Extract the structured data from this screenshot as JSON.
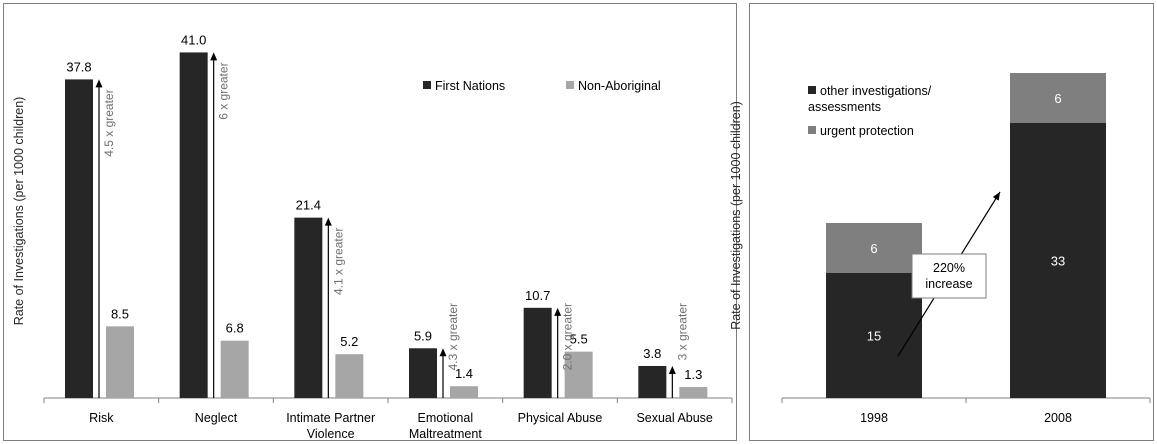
{
  "chart_data": [
    {
      "type": "bar",
      "categories": [
        "Risk",
        "Neglect",
        "Intimate Partner Violence",
        "Emotional Maltreatment",
        "Physical Abuse",
        "Sexual Abuse"
      ],
      "category_lines": [
        [
          "Risk"
        ],
        [
          "Neglect"
        ],
        [
          "Intimate Partner",
          "Violence"
        ],
        [
          "Emotional",
          "Maltreatment"
        ],
        [
          "Physical Abuse"
        ],
        [
          "Sexual Abuse"
        ]
      ],
      "series": [
        {
          "name": "First Nations",
          "values": [
            37.8,
            41.0,
            21.4,
            5.9,
            10.7,
            3.8
          ],
          "labels": [
            "37.8",
            "41.0",
            "21.4",
            "5.9",
            "10.7",
            "3.8"
          ],
          "color": "#262626"
        },
        {
          "name": "Non-Aboriginal",
          "values": [
            8.5,
            6.8,
            5.2,
            1.4,
            5.5,
            1.3
          ],
          "labels": [
            "8.5",
            "6.8",
            "5.2",
            "1.4",
            "5.5",
            "1.3"
          ],
          "color": "#a6a6a6"
        }
      ],
      "annotations": [
        "4.5 x greater",
        "6 x greater",
        "4.1 x greater",
        "4.3 x greater",
        "2.0 x greater",
        "3 x greater"
      ],
      "ylabel": "Rate of Investigations (per 1000 children)",
      "ylim": [
        0,
        42
      ],
      "grid": false,
      "legend_position": "top-right"
    },
    {
      "type": "bar",
      "stacked": true,
      "categories": [
        "1998",
        "2008"
      ],
      "series": [
        {
          "name": "other investigations/ assessments",
          "legend_lines": [
            "other investigations/",
            "assessments"
          ],
          "values": [
            15,
            33
          ],
          "labels": [
            "15",
            "33"
          ],
          "color": "#262626"
        },
        {
          "name": "urgent protection",
          "legend_lines": [
            "urgent protection"
          ],
          "values": [
            6,
            6
          ],
          "labels": [
            "6",
            "6"
          ],
          "color": "#7f7f7f"
        }
      ],
      "annotation": {
        "lines": [
          "220%",
          "increase"
        ]
      },
      "ylabel": "Rate of Investigations (per 1000 children)",
      "ylim": [
        0,
        40
      ],
      "grid": false,
      "legend_position": "top-left"
    }
  ]
}
